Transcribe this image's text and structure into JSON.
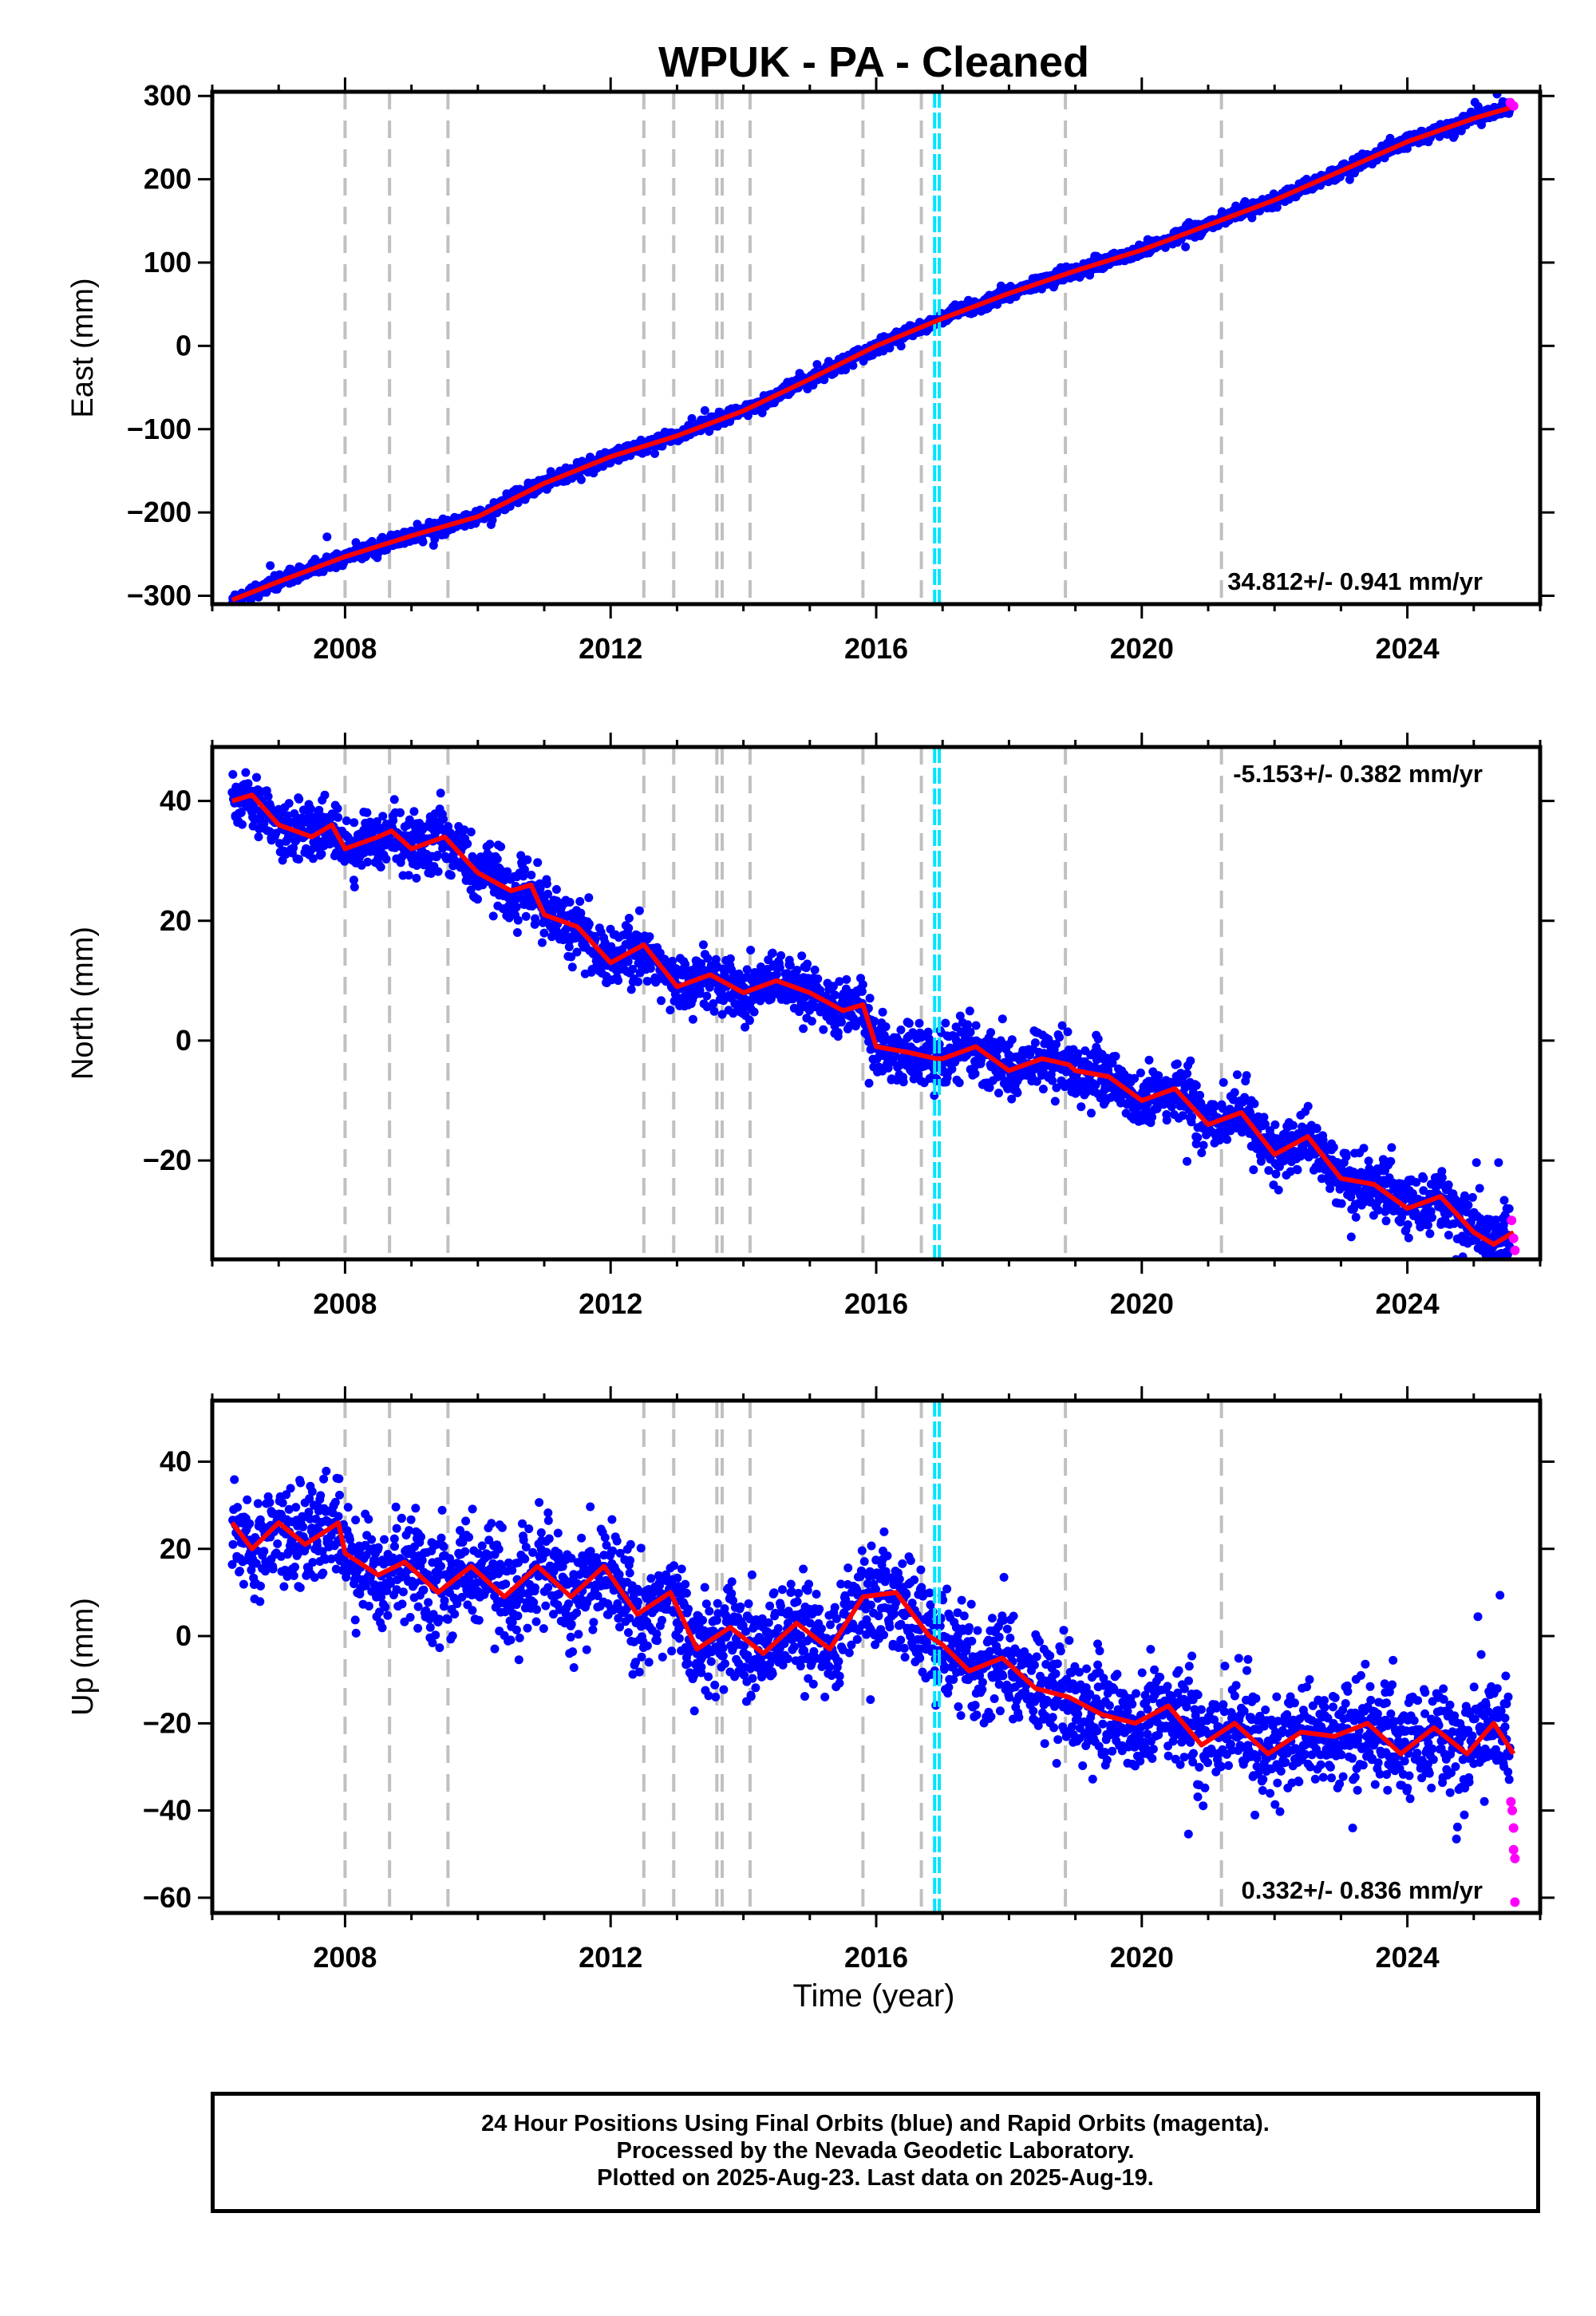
{
  "title": "WPUK  - PA - Cleaned",
  "x_axis_label": "Time (year)",
  "caption": [
    "24 Hour Positions Using Final Orbits (blue) and Rapid Orbits (magenta).",
    "Processed by the Nevada Geodetic Laboratory.",
    "Plotted on 2025-Aug-23. Last data on 2025-Aug-19."
  ],
  "colors": {
    "final_orbits": "#0000ff",
    "rapid_orbits": "#ff00ff",
    "model_fit": "#ff0000",
    "equipment_change_lines": "#c0c0c0",
    "cyan_event_line": "#00e5ff"
  },
  "chart_data": [
    {
      "type": "scatter",
      "panel": "East",
      "ylabel": "East (mm)",
      "xlim": [
        2006.0,
        2026.0
      ],
      "ylim": [
        -310,
        305
      ],
      "xticks": [
        2008,
        2012,
        2016,
        2020,
        2024
      ],
      "yticks": [
        -300,
        -200,
        -100,
        0,
        100,
        200,
        300
      ],
      "rate_label": "34.812+/- 0.941 mm/yr",
      "rate_position": "bottom-right",
      "fit_points": [
        [
          2006.3,
          -305
        ],
        [
          2007.0,
          -283
        ],
        [
          2008.0,
          -253
        ],
        [
          2009.0,
          -228
        ],
        [
          2010.0,
          -205
        ],
        [
          2011.0,
          -165
        ],
        [
          2012.0,
          -133
        ],
        [
          2013.0,
          -108
        ],
        [
          2014.0,
          -78
        ],
        [
          2015.0,
          -40
        ],
        [
          2016.0,
          0
        ],
        [
          2017.0,
          33
        ],
        [
          2018.0,
          63
        ],
        [
          2019.0,
          90
        ],
        [
          2020.0,
          115
        ],
        [
          2021.0,
          145
        ],
        [
          2022.0,
          175
        ],
        [
          2023.0,
          210
        ],
        [
          2024.0,
          245
        ],
        [
          2025.0,
          273
        ],
        [
          2025.6,
          287
        ]
      ],
      "noise_mm": 4,
      "rapid_points": [
        [
          2025.55,
          292
        ],
        [
          2025.6,
          288
        ]
      ]
    },
    {
      "type": "scatter",
      "panel": "North",
      "ylabel": "North (mm)",
      "xlim": [
        2006.0,
        2026.0
      ],
      "ylim": [
        -36.5,
        49
      ],
      "xticks": [
        2008,
        2012,
        2016,
        2020,
        2024
      ],
      "yticks": [
        -20,
        0,
        20,
        40
      ],
      "rate_label": "-5.153+/- 0.382 mm/yr",
      "rate_position": "top-right",
      "fit_points": [
        [
          2006.3,
          40
        ],
        [
          2006.6,
          41
        ],
        [
          2007.0,
          36
        ],
        [
          2007.5,
          34
        ],
        [
          2007.8,
          36
        ],
        [
          2008.0,
          32
        ],
        [
          2008.5,
          34
        ],
        [
          2008.7,
          35
        ],
        [
          2009.0,
          32
        ],
        [
          2009.5,
          34
        ],
        [
          2010.0,
          28
        ],
        [
          2010.5,
          25
        ],
        [
          2010.8,
          26
        ],
        [
          2011.0,
          21
        ],
        [
          2011.5,
          19
        ],
        [
          2012.0,
          13
        ],
        [
          2012.5,
          16
        ],
        [
          2013.0,
          9
        ],
        [
          2013.5,
          11
        ],
        [
          2014.0,
          8
        ],
        [
          2014.5,
          10
        ],
        [
          2015.0,
          8
        ],
        [
          2015.5,
          5
        ],
        [
          2015.8,
          6
        ],
        [
          2016.0,
          -1
        ],
        [
          2016.5,
          -2
        ],
        [
          2016.9,
          -3
        ],
        [
          2017.0,
          -3
        ],
        [
          2017.5,
          -1
        ],
        [
          2018.0,
          -5
        ],
        [
          2018.5,
          -3
        ],
        [
          2018.9,
          -4
        ],
        [
          2019.0,
          -5
        ],
        [
          2019.5,
          -6
        ],
        [
          2020.0,
          -10
        ],
        [
          2020.5,
          -8
        ],
        [
          2021.0,
          -14
        ],
        [
          2021.5,
          -12
        ],
        [
          2022.0,
          -19
        ],
        [
          2022.5,
          -16
        ],
        [
          2023.0,
          -23
        ],
        [
          2023.5,
          -24
        ],
        [
          2024.0,
          -28
        ],
        [
          2024.5,
          -26
        ],
        [
          2025.0,
          -32
        ],
        [
          2025.3,
          -34
        ],
        [
          2025.6,
          -32
        ]
      ],
      "noise_mm": 2.5,
      "rapid_points": [
        [
          2025.57,
          -30
        ],
        [
          2025.6,
          -33
        ],
        [
          2025.62,
          -35
        ]
      ]
    },
    {
      "type": "scatter",
      "panel": "Up",
      "ylabel": "Up (mm)",
      "xlim": [
        2006.0,
        2026.0
      ],
      "ylim": [
        -63.5,
        54
      ],
      "xticks": [
        2008,
        2012,
        2016,
        2020,
        2024
      ],
      "yticks": [
        -60,
        -40,
        -20,
        0,
        20,
        40
      ],
      "rate_label": "0.332+/- 0.836 mm/yr",
      "rate_position": "bottom-right",
      "fit_points": [
        [
          2006.3,
          26
        ],
        [
          2006.6,
          20
        ],
        [
          2007.0,
          26
        ],
        [
          2007.4,
          21
        ],
        [
          2007.9,
          26
        ],
        [
          2008.0,
          19
        ],
        [
          2008.5,
          14
        ],
        [
          2008.9,
          17
        ],
        [
          2009.4,
          10
        ],
        [
          2009.9,
          16
        ],
        [
          2010.4,
          9
        ],
        [
          2010.9,
          16
        ],
        [
          2011.4,
          9
        ],
        [
          2011.9,
          16
        ],
        [
          2012.4,
          5
        ],
        [
          2012.9,
          10
        ],
        [
          2013.3,
          -3
        ],
        [
          2013.8,
          2
        ],
        [
          2014.3,
          -4
        ],
        [
          2014.8,
          3
        ],
        [
          2015.3,
          -3
        ],
        [
          2015.8,
          9
        ],
        [
          2016.3,
          10
        ],
        [
          2016.8,
          0
        ],
        [
          2017.0,
          -2
        ],
        [
          2017.4,
          -8
        ],
        [
          2017.9,
          -5
        ],
        [
          2018.4,
          -12
        ],
        [
          2018.9,
          -14
        ],
        [
          2019.4,
          -18
        ],
        [
          2019.9,
          -20
        ],
        [
          2020.4,
          -16
        ],
        [
          2020.9,
          -25
        ],
        [
          2021.4,
          -20
        ],
        [
          2021.9,
          -27
        ],
        [
          2022.4,
          -22
        ],
        [
          2022.9,
          -23
        ],
        [
          2023.4,
          -20
        ],
        [
          2023.9,
          -27
        ],
        [
          2024.4,
          -21
        ],
        [
          2024.9,
          -27
        ],
        [
          2025.3,
          -20
        ],
        [
          2025.6,
          -27
        ]
      ],
      "noise_mm": 6,
      "rapid_points": [
        [
          2025.56,
          -38
        ],
        [
          2025.58,
          -40
        ],
        [
          2025.6,
          -44
        ],
        [
          2025.6,
          -49
        ],
        [
          2025.62,
          -51
        ],
        [
          2025.62,
          -61
        ]
      ]
    }
  ],
  "equipment_change_epochs": [
    2008.0,
    2008.67,
    2009.55,
    2012.5,
    2012.95,
    2013.6,
    2013.68,
    2014.1,
    2015.8,
    2016.68,
    2018.85,
    2021.2
  ],
  "cyan_event_epochs": [
    2016.88,
    2016.95
  ]
}
